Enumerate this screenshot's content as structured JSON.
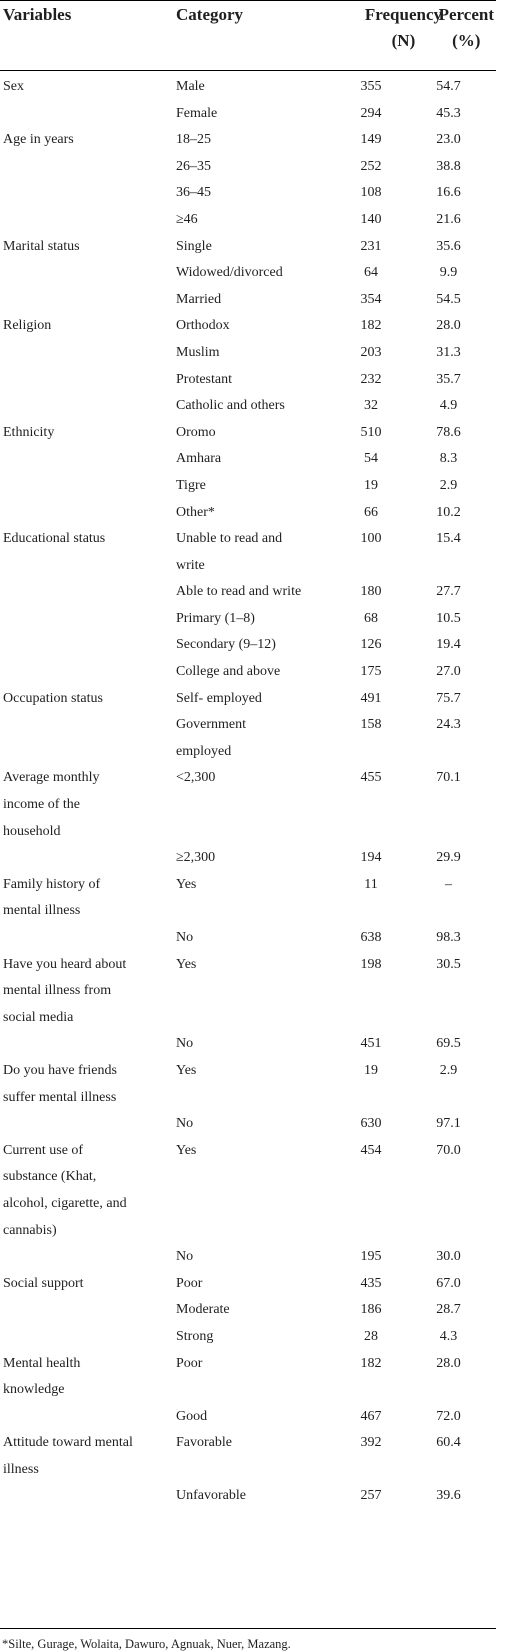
{
  "headers": {
    "variables": "Variables",
    "category": "Category",
    "frequency_line1": "Frequency",
    "frequency_line2": "(N)",
    "percent_line1": "Percent",
    "percent_line2": "(%)"
  },
  "rows": [
    {
      "variable": "Sex",
      "category": "Male",
      "n": "355",
      "pct": "54.7"
    },
    {
      "variable": "",
      "category": "Female",
      "n": "294",
      "pct": "45.3"
    },
    {
      "variable": "Age in years",
      "category": "18–25",
      "n": "149",
      "pct": "23.0"
    },
    {
      "variable": "",
      "category": "26–35",
      "n": "252",
      "pct": "38.8"
    },
    {
      "variable": "",
      "category": "36–45",
      "n": "108",
      "pct": "16.6"
    },
    {
      "variable": "",
      "category": "≥46",
      "n": "140",
      "pct": "21.6"
    },
    {
      "variable": "Marital status",
      "category": "Single",
      "n": "231",
      "pct": "35.6"
    },
    {
      "variable": "",
      "category": "Widowed/divorced",
      "n": "64",
      "pct": "9.9"
    },
    {
      "variable": "",
      "category": "Married",
      "n": "354",
      "pct": "54.5"
    },
    {
      "variable": "Religion",
      "category": "Orthodox",
      "n": "182",
      "pct": "28.0"
    },
    {
      "variable": "",
      "category": "Muslim",
      "n": "203",
      "pct": "31.3"
    },
    {
      "variable": "",
      "category": "Protestant",
      "n": "232",
      "pct": "35.7"
    },
    {
      "variable": "",
      "category": "Catholic and others",
      "n": "32",
      "pct": "4.9"
    },
    {
      "variable": "Ethnicity",
      "category": "Oromo",
      "n": "510",
      "pct": "78.6"
    },
    {
      "variable": "",
      "category": "Amhara",
      "n": "54",
      "pct": "8.3"
    },
    {
      "variable": "",
      "category": "Tigre",
      "n": "19",
      "pct": "2.9"
    },
    {
      "variable": "",
      "category": "Other*",
      "n": "66",
      "pct": "10.2"
    },
    {
      "variable": "Educational status",
      "category": "Unable to read and write",
      "n": "100",
      "pct": "15.4"
    },
    {
      "variable": "",
      "category": "Able to read and write",
      "n": "180",
      "pct": "27.7"
    },
    {
      "variable": "",
      "category": "Primary (1–8)",
      "n": "68",
      "pct": "10.5"
    },
    {
      "variable": "",
      "category": "Secondary (9–12)",
      "n": "126",
      "pct": "19.4"
    },
    {
      "variable": "",
      "category": "College and above",
      "n": "175",
      "pct": "27.0"
    },
    {
      "variable": "Occupation status",
      "category": "Self- employed",
      "n": "491",
      "pct": "75.7"
    },
    {
      "variable": "",
      "category": "Government employed",
      "n": "158",
      "pct": "24.3"
    },
    {
      "variable": "Average monthly income of the household",
      "category": "<2,300",
      "n": "455",
      "pct": "70.1"
    },
    {
      "variable": "",
      "category": "≥2,300",
      "n": "194",
      "pct": "29.9"
    },
    {
      "variable": "Family history of mental illness",
      "category": "Yes",
      "n": "11",
      "pct": "–"
    },
    {
      "variable": "",
      "category": "No",
      "n": "638",
      "pct": "98.3"
    },
    {
      "variable": "Have you heard about mental illness from social media",
      "category": "Yes",
      "n": "198",
      "pct": "30.5"
    },
    {
      "variable": "",
      "category": "No",
      "n": "451",
      "pct": "69.5"
    },
    {
      "variable": "Do you have friends suffer mental illness",
      "category": "Yes",
      "n": "19",
      "pct": "2.9"
    },
    {
      "variable": "",
      "category": "No",
      "n": "630",
      "pct": "97.1"
    },
    {
      "variable": "Current use of substance (Khat, alcohol, cigarette, and cannabis)",
      "category": "Yes",
      "n": "454",
      "pct": "70.0"
    },
    {
      "variable": "",
      "category": "No",
      "n": "195",
      "pct": "30.0"
    },
    {
      "variable": "Social support",
      "category": "Poor",
      "n": "435",
      "pct": "67.0"
    },
    {
      "variable": "",
      "category": "Moderate",
      "n": "186",
      "pct": "28.7"
    },
    {
      "variable": "",
      "category": "Strong",
      "n": "28",
      "pct": "4.3"
    },
    {
      "variable": "Mental health knowledge",
      "category": "Poor",
      "n": "182",
      "pct": "28.0"
    },
    {
      "variable": "",
      "category": "Good",
      "n": "467",
      "pct": "72.0"
    },
    {
      "variable": "Attitude toward mental illness",
      "category": "Favorable",
      "n": "392",
      "pct": "60.4"
    },
    {
      "variable": "",
      "category": "Unfavorable",
      "n": "257",
      "pct": "39.6"
    }
  ],
  "footnote": "*Silte, Gurage, Wolaita, Dawuro, Agnuak, Nuer, Mazang."
}
